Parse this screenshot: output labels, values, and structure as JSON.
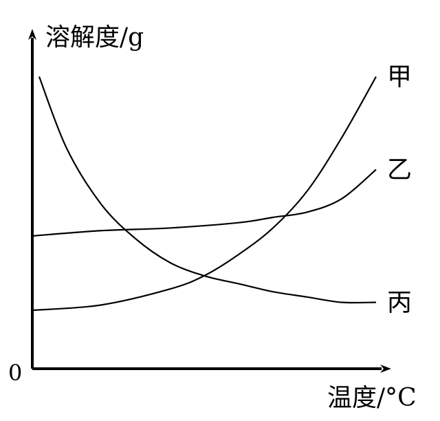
{
  "chart_data": {
    "type": "line",
    "title": "",
    "xlabel": "温度/°C",
    "ylabel": "溶解度/g",
    "origin_label": "0",
    "x_ticks": [],
    "y_ticks": [],
    "grid": false,
    "legend": "none",
    "xlim": [
      0,
      100
    ],
    "ylim": [
      0,
      100
    ],
    "series": [
      {
        "name": "甲",
        "x": [
          0,
          20,
          40,
          50,
          60,
          70,
          80,
          90,
          100
        ],
        "y": [
          22,
          24,
          30,
          35,
          43,
          53,
          67,
          87,
          110
        ]
      },
      {
        "name": "乙",
        "x": [
          0,
          20,
          40,
          60,
          70,
          80,
          90,
          100
        ],
        "y": [
          50,
          52,
          53,
          55,
          57,
          59,
          64,
          75
        ]
      },
      {
        "name": "丙",
        "x": [
          2,
          10,
          20,
          30,
          40,
          50,
          60,
          70,
          80,
          90,
          100
        ],
        "y": [
          110,
          83,
          62,
          49,
          40,
          35,
          32,
          29,
          27,
          25,
          25
        ]
      }
    ]
  }
}
